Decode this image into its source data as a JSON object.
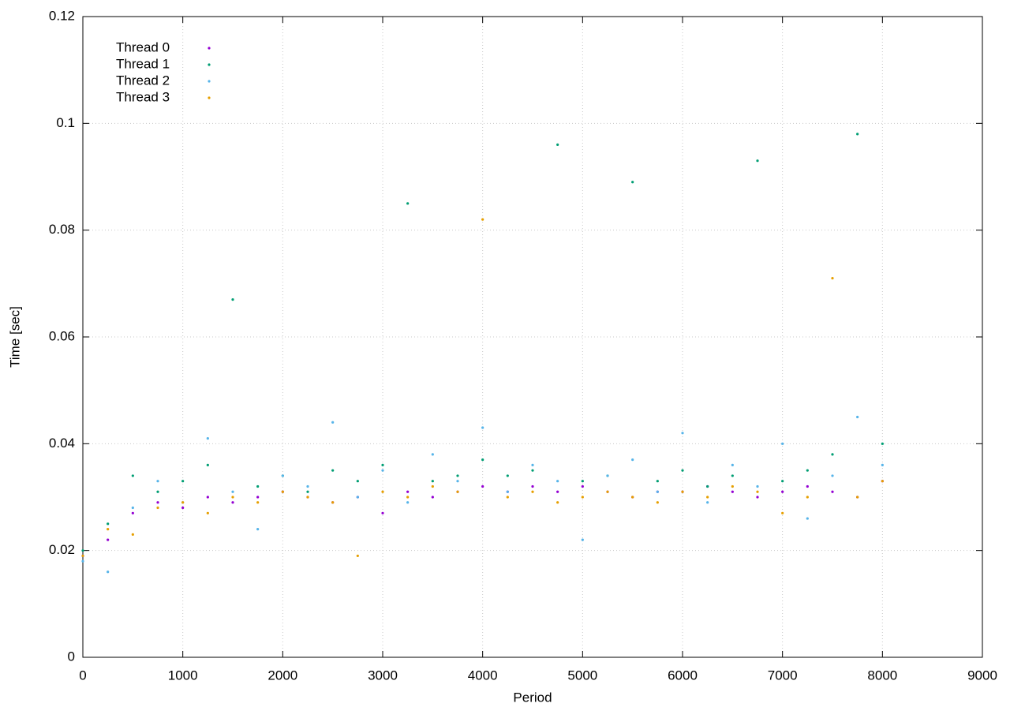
{
  "chart_data": {
    "type": "scatter",
    "x_label": "Period",
    "y_label": "Time [sec]",
    "x": [
      0,
      250,
      500,
      750,
      1000,
      1250,
      1500,
      1750,
      2000,
      2250,
      2500,
      2750,
      3000,
      3250,
      3500,
      3750,
      4000,
      4250,
      4500,
      4750,
      5000,
      5250,
      5500,
      5750,
      6000,
      6250,
      6500,
      6750,
      7000,
      7250,
      7500,
      7750,
      8000
    ],
    "series": [
      {
        "name": "Thread 0",
        "color": "#9400d3",
        "values": [
          0.019,
          0.022,
          0.027,
          0.029,
          0.028,
          0.03,
          0.029,
          0.03,
          0.031,
          0.03,
          0.029,
          0.03,
          0.027,
          0.031,
          0.03,
          0.031,
          0.032,
          0.031,
          0.032,
          0.031,
          0.032,
          0.031,
          0.03,
          0.031,
          0.031,
          0.032,
          0.031,
          0.03,
          0.031,
          0.032,
          0.031,
          0.03,
          0.033
        ]
      },
      {
        "name": "Thread 1",
        "color": "#009e73",
        "values": [
          0.02,
          0.025,
          0.034,
          0.031,
          0.033,
          0.036,
          0.067,
          0.032,
          0.034,
          0.031,
          0.035,
          0.033,
          0.036,
          0.085,
          0.033,
          0.034,
          0.037,
          0.034,
          0.035,
          0.096,
          0.033,
          0.034,
          0.089,
          0.033,
          0.035,
          0.032,
          0.034,
          0.093,
          0.033,
          0.035,
          0.038,
          0.098,
          0.04
        ]
      },
      {
        "name": "Thread 2",
        "color": "#56b4e9",
        "values": [
          0.018,
          0.016,
          0.028,
          0.033,
          0.029,
          0.041,
          0.031,
          0.024,
          0.034,
          0.032,
          0.044,
          0.03,
          0.035,
          0.029,
          0.038,
          0.033,
          0.043,
          0.031,
          0.036,
          0.033,
          0.022,
          0.034,
          0.037,
          0.031,
          0.042,
          0.029,
          0.036,
          0.032,
          0.04,
          0.026,
          0.034,
          0.045,
          0.036
        ]
      },
      {
        "name": "Thread 3",
        "color": "#e69f00",
        "values": [
          0.019,
          0.024,
          0.023,
          0.028,
          0.029,
          0.027,
          0.03,
          0.029,
          0.031,
          0.03,
          0.029,
          0.019,
          0.031,
          0.03,
          0.032,
          0.031,
          0.082,
          0.03,
          0.031,
          0.029,
          0.03,
          0.031,
          0.03,
          0.029,
          0.031,
          0.03,
          0.032,
          0.031,
          0.027,
          0.03,
          0.071,
          0.03,
          0.033
        ]
      }
    ],
    "xlim": [
      0,
      9000
    ],
    "xticks": [
      0,
      1000,
      2000,
      3000,
      4000,
      5000,
      6000,
      7000,
      8000,
      9000
    ],
    "ylim": [
      0,
      0.12
    ],
    "yticks": [
      0,
      0.02,
      0.04,
      0.06,
      0.08,
      0.1,
      0.12
    ],
    "grid": true,
    "legend": "top-left"
  }
}
